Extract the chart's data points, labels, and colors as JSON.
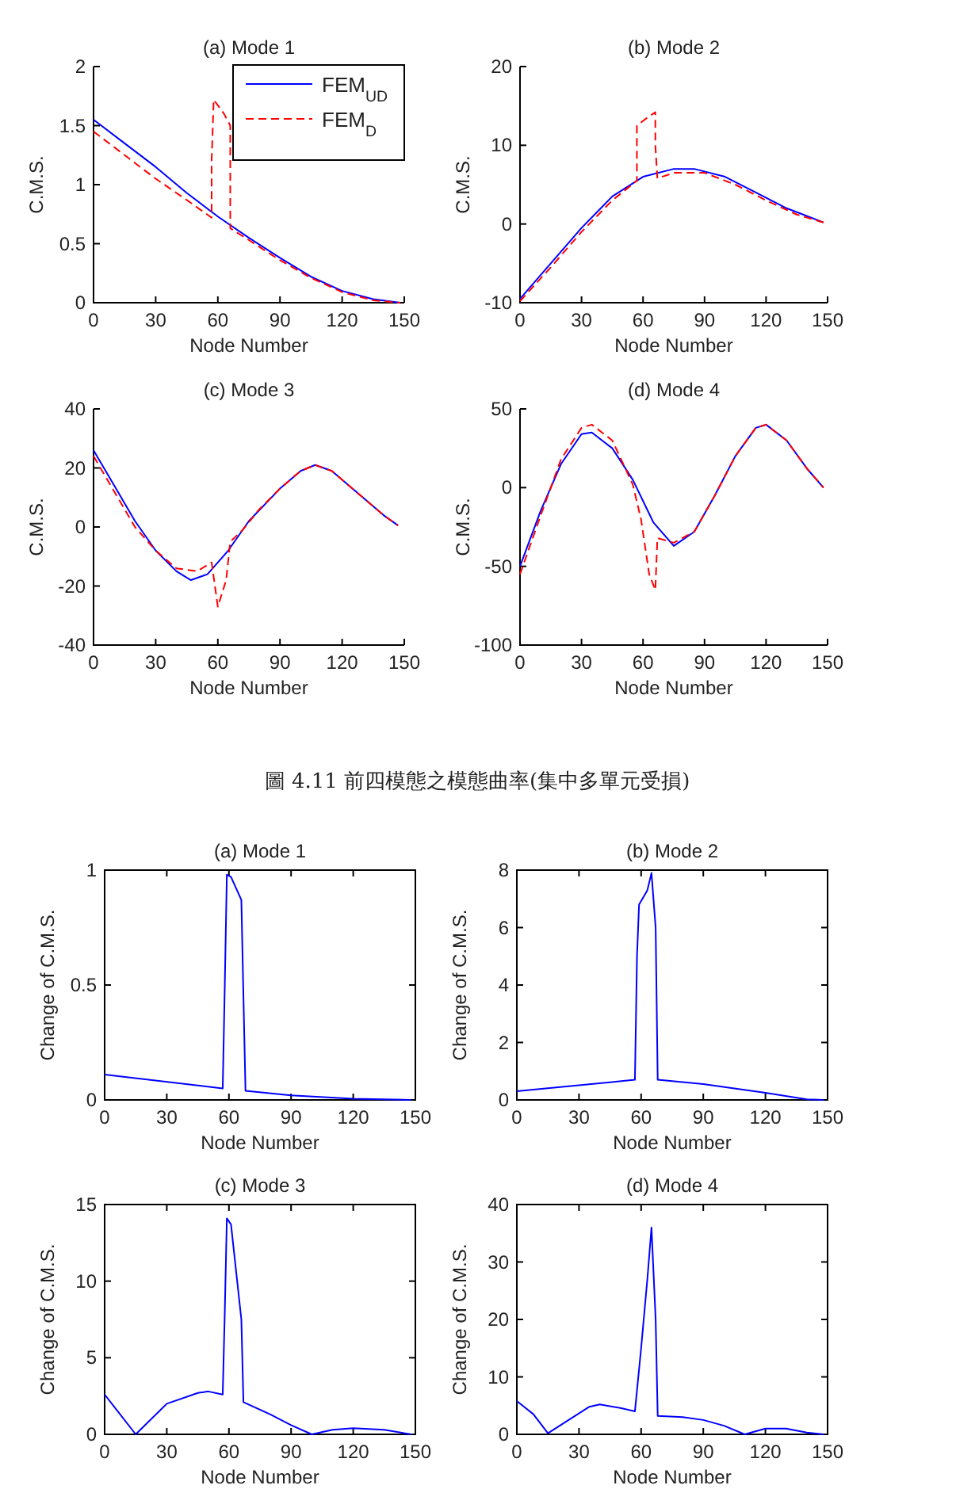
{
  "chart_data": [
    {
      "type": "line",
      "title": "(a) Mode 1",
      "xlabel": "Node Number",
      "ylabel": "C.M.S.",
      "xlim": [
        0,
        150
      ],
      "xticks": [
        0,
        30,
        60,
        90,
        120,
        150
      ],
      "ylim": [
        0,
        2
      ],
      "yticks": [
        0,
        0.5,
        1,
        1.5,
        2
      ],
      "legend": "top right",
      "series": [
        {
          "name": "FEM$_{UD}$",
          "color": "#0000ff",
          "line_style": "solid",
          "x": [
            0,
            15,
            30,
            45,
            60,
            75,
            90,
            105,
            120,
            135,
            148
          ],
          "values": [
            1.55,
            1.35,
            1.15,
            0.93,
            0.73,
            0.55,
            0.38,
            0.22,
            0.1,
            0.03,
            0.0
          ]
        },
        {
          "name": "FEM$_{D}$",
          "color": "#ff0000",
          "line_style": "dashed",
          "x": [
            0,
            15,
            30,
            45,
            57,
            57,
            58,
            63,
            66,
            66,
            75,
            90,
            105,
            120,
            135,
            148
          ],
          "values": [
            1.45,
            1.25,
            1.05,
            0.87,
            0.72,
            1.2,
            1.72,
            1.6,
            1.5,
            0.63,
            0.53,
            0.36,
            0.21,
            0.09,
            0.02,
            0.0
          ]
        }
      ]
    },
    {
      "type": "line",
      "title": "(b) Mode 2",
      "xlabel": "Node Number",
      "ylabel": "C.M.S.",
      "xlim": [
        0,
        150
      ],
      "xticks": [
        0,
        30,
        60,
        90,
        120,
        150
      ],
      "ylim": [
        -10,
        20
      ],
      "yticks": [
        -10,
        0,
        10,
        20
      ],
      "series": [
        {
          "color": "#0000ff",
          "line_style": "solid",
          "x": [
            0,
            15,
            30,
            45,
            60,
            75,
            85,
            100,
            115,
            130,
            148
          ],
          "values": [
            -9.5,
            -5,
            -0.5,
            3.5,
            6,
            7,
            7,
            6,
            4,
            2,
            0.2
          ]
        },
        {
          "color": "#ff0000",
          "line_style": "dashed",
          "x": [
            0,
            15,
            30,
            45,
            57,
            57,
            62,
            66,
            66,
            67,
            75,
            90,
            105,
            120,
            135,
            148
          ],
          "values": [
            -9.8,
            -5.5,
            -1,
            3,
            5.5,
            12.5,
            13.5,
            14.2,
            10,
            5.8,
            6.5,
            6.5,
            5,
            3,
            1.2,
            0.2
          ]
        }
      ]
    },
    {
      "type": "line",
      "title": "(c) Mode 3",
      "xlabel": "Node Number",
      "ylabel": "C.M.S.",
      "xlim": [
        0,
        150
      ],
      "xticks": [
        0,
        30,
        60,
        90,
        120,
        150
      ],
      "ylim": [
        -40,
        40
      ],
      "yticks": [
        -40,
        -20,
        0,
        20,
        40
      ],
      "series": [
        {
          "color": "#0000ff",
          "line_style": "solid",
          "x": [
            0,
            10,
            20,
            30,
            40,
            47,
            55,
            65,
            75,
            90,
            100,
            107,
            115,
            130,
            140,
            147
          ],
          "values": [
            26,
            14,
            2,
            -8,
            -15,
            -18,
            -16,
            -8,
            2,
            13,
            19,
            21,
            19,
            10,
            4,
            0.5
          ]
        },
        {
          "color": "#ff0000",
          "line_style": "dashed",
          "x": [
            0,
            10,
            20,
            30,
            40,
            50,
            57,
            60,
            64,
            66,
            72,
            80,
            90,
            100,
            107,
            115,
            130,
            140,
            147
          ],
          "values": [
            24,
            12,
            0,
            -8,
            -14,
            -15,
            -12,
            -27,
            -18,
            -5,
            -1,
            6,
            13,
            19,
            21,
            19,
            10,
            4,
            0.5
          ]
        }
      ]
    },
    {
      "type": "line",
      "title": "(d) Mode 4",
      "xlabel": "Node Number",
      "ylabel": "C.M.S.",
      "xlim": [
        0,
        150
      ],
      "xticks": [
        0,
        30,
        60,
        90,
        120,
        150
      ],
      "ylim": [
        -100,
        50
      ],
      "yticks": [
        -100,
        -50,
        0,
        50
      ],
      "series": [
        {
          "color": "#0000ff",
          "line_style": "solid",
          "x": [
            0,
            10,
            20,
            30,
            35,
            45,
            55,
            65,
            75,
            85,
            95,
            105,
            115,
            120,
            130,
            140,
            148
          ],
          "values": [
            -50,
            -15,
            15,
            34,
            35,
            25,
            5,
            -22,
            -37,
            -28,
            -5,
            20,
            38,
            40,
            30,
            12,
            0
          ]
        },
        {
          "color": "#ff0000",
          "line_style": "dashed",
          "x": [
            0,
            10,
            20,
            30,
            35,
            45,
            55,
            59,
            63,
            66,
            67,
            75,
            85,
            95,
            105,
            115,
            120,
            130,
            140,
            148
          ],
          "values": [
            -55,
            -18,
            18,
            38,
            40,
            30,
            2,
            -20,
            -55,
            -65,
            -32,
            -35,
            -28,
            -5,
            20,
            38,
            40,
            30,
            12,
            0
          ]
        }
      ]
    },
    {
      "type": "other",
      "title": "圖 4.11 前四模態之模態曲率(集中多單元受損)"
    },
    {
      "type": "line",
      "title": "(a) Mode 1",
      "xlabel": "Node Number",
      "ylabel": "Change of C.M.S.",
      "xlim": [
        0,
        150
      ],
      "xticks": [
        0,
        30,
        60,
        90,
        120,
        150
      ],
      "ylim": [
        0,
        1
      ],
      "yticks": [
        0,
        0.5,
        1
      ],
      "series": [
        {
          "color": "#0000ff",
          "line_style": "solid",
          "x": [
            0,
            57,
            58,
            59,
            61,
            66,
            67,
            68,
            90,
            120,
            148
          ],
          "values": [
            0.11,
            0.05,
            0.5,
            0.98,
            0.97,
            0.87,
            0.45,
            0.04,
            0.02,
            0.005,
            0
          ]
        }
      ]
    },
    {
      "type": "line",
      "title": "(b) Mode 2",
      "xlabel": "Node Number",
      "ylabel": "Change of C.M.S.",
      "xlim": [
        0,
        150
      ],
      "xticks": [
        0,
        30,
        60,
        90,
        120,
        150
      ],
      "ylim": [
        0,
        8
      ],
      "yticks": [
        0,
        2,
        4,
        6,
        8
      ],
      "series": [
        {
          "color": "#0000ff",
          "line_style": "solid",
          "x": [
            0,
            57,
            58,
            59,
            63,
            65,
            67,
            68,
            90,
            120,
            140,
            148
          ],
          "values": [
            0.3,
            0.7,
            5,
            6.8,
            7.3,
            7.9,
            6,
            0.7,
            0.55,
            0.25,
            0.02,
            0
          ]
        }
      ]
    },
    {
      "type": "line",
      "title": "(c) Mode 3",
      "xlabel": "Node Number",
      "ylabel": "Change of C.M.S.",
      "xlim": [
        0,
        150
      ],
      "xticks": [
        0,
        30,
        60,
        90,
        120,
        150
      ],
      "ylim": [
        0,
        15
      ],
      "yticks": [
        0,
        5,
        10,
        15
      ],
      "series": [
        {
          "color": "#0000ff",
          "line_style": "solid",
          "x": [
            0,
            15,
            30,
            45,
            50,
            57,
            58,
            59,
            61,
            66,
            67,
            80,
            90,
            100,
            110,
            120,
            135,
            148
          ],
          "values": [
            2.6,
            0,
            2,
            2.7,
            2.8,
            2.6,
            8,
            14.1,
            13.7,
            7.5,
            2.1,
            1.3,
            0.6,
            0,
            0.3,
            0.4,
            0.3,
            0
          ]
        }
      ]
    },
    {
      "type": "line",
      "title": "(d) Mode 4",
      "xlabel": "Node Number",
      "ylabel": "Change of C.M.S.",
      "xlim": [
        0,
        150
      ],
      "xticks": [
        0,
        30,
        60,
        90,
        120,
        150
      ],
      "ylim": [
        0,
        40
      ],
      "yticks": [
        0,
        10,
        20,
        30,
        40
      ],
      "series": [
        {
          "color": "#0000ff",
          "line_style": "solid",
          "x": [
            0,
            8,
            15,
            25,
            35,
            40,
            50,
            57,
            60,
            63,
            65,
            67,
            68,
            80,
            90,
            100,
            110,
            120,
            130,
            140,
            148
          ],
          "values": [
            5.8,
            3.5,
            0.2,
            2.5,
            4.8,
            5.2,
            4.6,
            4,
            15,
            27,
            36,
            20,
            3.2,
            3,
            2.5,
            1.5,
            0,
            1,
            1,
            0.3,
            0
          ]
        }
      ]
    }
  ]
}
